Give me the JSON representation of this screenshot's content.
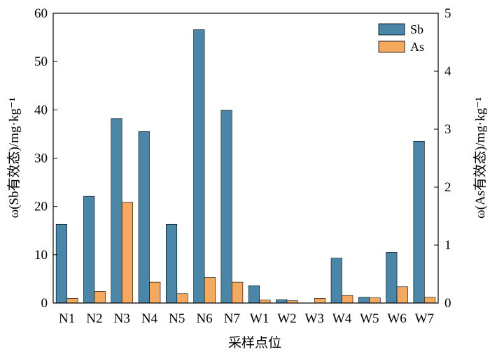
{
  "chart_data": {
    "type": "bar",
    "categories": [
      "N1",
      "N2",
      "N3",
      "N4",
      "N5",
      "N6",
      "N7",
      "W1",
      "W2",
      "W3",
      "W4",
      "W5",
      "W6",
      "W7"
    ],
    "series": [
      {
        "name": "Sb",
        "axis": "left",
        "color": "#4a86a8",
        "values": [
          16.3,
          22.1,
          38.2,
          35.5,
          16.3,
          56.6,
          39.9,
          3.6,
          0.7,
          0.0,
          9.3,
          1.2,
          10.5,
          33.5
        ]
      },
      {
        "name": "As",
        "axis": "right",
        "color": "#f5a95f",
        "values": [
          0.08,
          0.2,
          1.74,
          0.36,
          0.16,
          0.44,
          0.36,
          0.05,
          0.04,
          0.08,
          0.13,
          0.09,
          0.28,
          0.1
        ]
      }
    ],
    "title": "",
    "xlabel": "采样点位",
    "ylabel_left": "ω(Sb有效态)/mg·kg⁻¹",
    "ylabel_right": "ω(As有效态)/mg·kg⁻¹",
    "ylim_left": [
      0,
      60
    ],
    "ylim_right": [
      0,
      5
    ],
    "yticks_left": [
      "0",
      "10",
      "20",
      "30",
      "40",
      "50",
      "60"
    ],
    "yticks_right": [
      "0",
      "1",
      "2",
      "3",
      "4",
      "5"
    ],
    "legend_position": "top-right",
    "grid": false
  }
}
